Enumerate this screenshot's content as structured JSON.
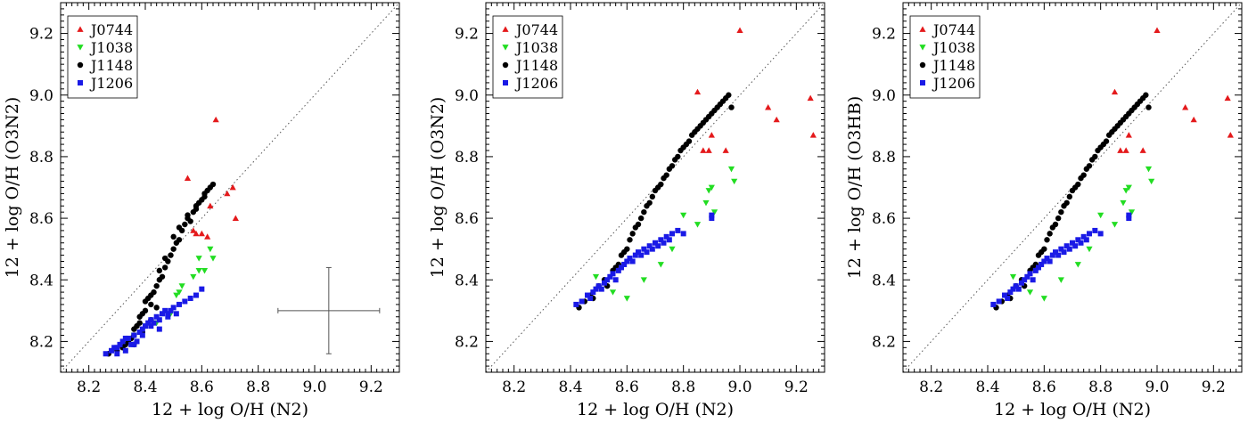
{
  "chart_data": [
    {
      "type": "scatter",
      "xlabel": "12 + log O/H (N2)",
      "ylabel": "12 + log O/H (O3N2)",
      "xlim": [
        8.1,
        9.3
      ],
      "ylim": [
        8.1,
        9.3
      ],
      "xticks": [
        "8.2",
        "8.4",
        "8.6",
        "8.8",
        "9.0",
        "9.2"
      ],
      "yticks": [
        "8.2",
        "8.4",
        "8.6",
        "8.8",
        "9.0",
        "9.2"
      ],
      "identity_line": true,
      "legend_position": "top-left",
      "error_bar": {
        "x": 9.05,
        "y": 8.3,
        "xerr": 0.18,
        "yerr": 0.14
      },
      "series": [
        {
          "name": "J0744",
          "marker": "triangle-up",
          "color": "#e41a1c",
          "x": [
            8.55,
            8.58,
            8.6,
            8.62,
            8.65,
            8.69,
            8.71,
            8.72,
            8.57,
            8.63
          ],
          "y": [
            8.73,
            8.55,
            8.55,
            8.54,
            8.92,
            8.68,
            8.7,
            8.6,
            8.56,
            8.64
          ]
        },
        {
          "name": "J1038",
          "marker": "triangle-down",
          "color": "#22dd22",
          "x": [
            8.36,
            8.4,
            8.44,
            8.49,
            8.51,
            8.52,
            8.53,
            8.57,
            8.59,
            8.59,
            8.61,
            8.63,
            8.64
          ],
          "y": [
            8.22,
            8.25,
            8.26,
            8.29,
            8.35,
            8.36,
            8.38,
            8.41,
            8.43,
            8.47,
            8.43,
            8.5,
            8.47
          ]
        },
        {
          "name": "J1148",
          "marker": "circle",
          "color": "#000000",
          "x": [
            8.27,
            8.3,
            8.32,
            8.33,
            8.34,
            8.35,
            8.36,
            8.36,
            8.37,
            8.38,
            8.38,
            8.39,
            8.4,
            8.4,
            8.41,
            8.42,
            8.42,
            8.43,
            8.44,
            8.45,
            8.46,
            8.47,
            8.48,
            8.49,
            8.5,
            8.51,
            8.52,
            8.53,
            8.54,
            8.55,
            8.56,
            8.57,
            8.58,
            8.59,
            8.6,
            8.61,
            8.62,
            8.63,
            8.64,
            8.45,
            8.47,
            8.5,
            8.52,
            8.55,
            8.58,
            8.61,
            8.36,
            8.39,
            8.42,
            8.44
          ],
          "y": [
            8.16,
            8.17,
            8.18,
            8.19,
            8.2,
            8.21,
            8.22,
            8.24,
            8.25,
            8.26,
            8.28,
            8.29,
            8.3,
            8.33,
            8.34,
            8.35,
            8.32,
            8.36,
            8.38,
            8.4,
            8.41,
            8.44,
            8.46,
            8.48,
            8.5,
            8.52,
            8.53,
            8.56,
            8.58,
            8.6,
            8.59,
            8.62,
            8.63,
            8.65,
            8.66,
            8.68,
            8.69,
            8.7,
            8.71,
            8.43,
            8.47,
            8.54,
            8.57,
            8.61,
            8.64,
            8.67,
            8.19,
            8.23,
            8.27,
            8.31
          ]
        },
        {
          "name": "J1206",
          "marker": "square",
          "color": "#1a1ae6",
          "x": [
            8.26,
            8.28,
            8.29,
            8.3,
            8.31,
            8.32,
            8.33,
            8.34,
            8.35,
            8.36,
            8.37,
            8.38,
            8.39,
            8.4,
            8.41,
            8.42,
            8.43,
            8.44,
            8.45,
            8.46,
            8.47,
            8.48,
            8.49,
            8.5,
            8.52,
            8.54,
            8.56,
            8.58,
            8.6,
            8.3,
            8.33,
            8.36,
            8.39,
            8.42,
            8.45,
            8.48,
            8.51
          ],
          "y": [
            8.16,
            8.17,
            8.18,
            8.16,
            8.19,
            8.2,
            8.17,
            8.21,
            8.19,
            8.22,
            8.2,
            8.23,
            8.24,
            8.25,
            8.26,
            8.27,
            8.26,
            8.28,
            8.27,
            8.29,
            8.3,
            8.28,
            8.3,
            8.31,
            8.32,
            8.33,
            8.34,
            8.35,
            8.37,
            8.18,
            8.21,
            8.19,
            8.22,
            8.25,
            8.24,
            8.29,
            8.29
          ]
        }
      ]
    },
    {
      "type": "scatter",
      "xlabel": "12 + log O/H (N2)",
      "ylabel": "12 + log O/H (O3N2)",
      "xlim": [
        8.1,
        9.3
      ],
      "ylim": [
        8.1,
        9.3
      ],
      "xticks": [
        "8.2",
        "8.4",
        "8.6",
        "8.8",
        "9.0",
        "9.2"
      ],
      "yticks": [
        "8.2",
        "8.4",
        "8.6",
        "8.8",
        "9.0",
        "9.2"
      ],
      "identity_line": true,
      "legend_position": "top-left",
      "series": [
        {
          "name": "J0744",
          "marker": "triangle-up",
          "color": "#e41a1c",
          "x": [
            8.85,
            8.87,
            8.89,
            8.9,
            8.95,
            9.0,
            9.1,
            9.13,
            9.25,
            9.26
          ],
          "y": [
            9.01,
            8.82,
            8.82,
            8.87,
            8.82,
            9.21,
            8.96,
            8.92,
            8.99,
            8.87
          ]
        },
        {
          "name": "J1038",
          "marker": "triangle-down",
          "color": "#22dd22",
          "x": [
            8.49,
            8.55,
            8.6,
            8.66,
            8.72,
            8.76,
            8.8,
            8.85,
            8.88,
            8.89,
            8.9,
            8.91,
            8.97,
            8.98
          ],
          "y": [
            8.41,
            8.36,
            8.34,
            8.4,
            8.45,
            8.5,
            8.61,
            8.58,
            8.65,
            8.69,
            8.7,
            8.62,
            8.76,
            8.72
          ]
        },
        {
          "name": "J1148",
          "marker": "circle",
          "color": "#000000",
          "x": [
            8.43,
            8.45,
            8.47,
            8.5,
            8.52,
            8.55,
            8.57,
            8.58,
            8.6,
            8.61,
            8.62,
            8.63,
            8.64,
            8.65,
            8.66,
            8.67,
            8.68,
            8.69,
            8.7,
            8.71,
            8.72,
            8.73,
            8.74,
            8.75,
            8.76,
            8.77,
            8.78,
            8.79,
            8.8,
            8.81,
            8.82,
            8.83,
            8.84,
            8.85,
            8.86,
            8.87,
            8.88,
            8.89,
            8.9,
            8.91,
            8.92,
            8.93,
            8.94,
            8.95,
            8.96,
            8.97,
            8.48,
            8.53,
            8.56,
            8.59
          ],
          "y": [
            8.31,
            8.33,
            8.35,
            8.38,
            8.4,
            8.43,
            8.45,
            8.48,
            8.5,
            8.53,
            8.55,
            8.57,
            8.58,
            8.6,
            8.62,
            8.64,
            8.65,
            8.67,
            8.69,
            8.7,
            8.71,
            8.73,
            8.74,
            8.76,
            8.77,
            8.79,
            8.8,
            8.82,
            8.83,
            8.84,
            8.85,
            8.87,
            8.88,
            8.89,
            8.9,
            8.91,
            8.92,
            8.93,
            8.94,
            8.95,
            8.96,
            8.97,
            8.98,
            8.99,
            9.0,
            8.96,
            8.34,
            8.38,
            8.44,
            8.49
          ]
        },
        {
          "name": "J1206",
          "marker": "square",
          "color": "#1a1ae6",
          "x": [
            8.42,
            8.44,
            8.46,
            8.47,
            8.48,
            8.49,
            8.5,
            8.51,
            8.52,
            8.53,
            8.54,
            8.55,
            8.56,
            8.57,
            8.58,
            8.59,
            8.6,
            8.61,
            8.62,
            8.63,
            8.64,
            8.65,
            8.66,
            8.67,
            8.68,
            8.69,
            8.7,
            8.71,
            8.72,
            8.73,
            8.74,
            8.75,
            8.76,
            8.78,
            8.8,
            8.9,
            8.9
          ],
          "y": [
            8.32,
            8.33,
            8.35,
            8.34,
            8.36,
            8.37,
            8.38,
            8.37,
            8.39,
            8.4,
            8.41,
            8.42,
            8.4,
            8.43,
            8.44,
            8.45,
            8.46,
            8.47,
            8.46,
            8.48,
            8.49,
            8.48,
            8.5,
            8.49,
            8.51,
            8.5,
            8.52,
            8.51,
            8.53,
            8.52,
            8.54,
            8.53,
            8.55,
            8.56,
            8.55,
            8.6,
            8.61
          ]
        }
      ]
    },
    {
      "type": "scatter",
      "xlabel": "12 + log O/H (N2)",
      "ylabel": "12 + log O/H (O3HB)",
      "xlim": [
        8.1,
        9.3
      ],
      "ylim": [
        8.1,
        9.3
      ],
      "xticks": [
        "8.2",
        "8.4",
        "8.6",
        "8.8",
        "9.0",
        "9.2"
      ],
      "yticks": [
        "8.2",
        "8.4",
        "8.6",
        "8.8",
        "9.0",
        "9.2"
      ],
      "identity_line": true,
      "legend_position": "top-left",
      "series": [
        {
          "name": "J0744",
          "marker": "triangle-up",
          "color": "#e41a1c",
          "x": [
            8.85,
            8.87,
            8.89,
            8.9,
            8.95,
            9.0,
            9.1,
            9.13,
            9.25,
            9.26
          ],
          "y": [
            9.01,
            8.82,
            8.82,
            8.87,
            8.82,
            9.21,
            8.96,
            8.92,
            8.99,
            8.87
          ]
        },
        {
          "name": "J1038",
          "marker": "triangle-down",
          "color": "#22dd22",
          "x": [
            8.49,
            8.55,
            8.6,
            8.66,
            8.72,
            8.76,
            8.8,
            8.85,
            8.88,
            8.89,
            8.9,
            8.91,
            8.97,
            8.98
          ],
          "y": [
            8.41,
            8.36,
            8.34,
            8.4,
            8.45,
            8.5,
            8.61,
            8.58,
            8.65,
            8.69,
            8.7,
            8.62,
            8.76,
            8.72
          ]
        },
        {
          "name": "J1148",
          "marker": "circle",
          "color": "#000000",
          "x": [
            8.43,
            8.45,
            8.47,
            8.5,
            8.52,
            8.55,
            8.57,
            8.58,
            8.6,
            8.61,
            8.62,
            8.63,
            8.64,
            8.65,
            8.66,
            8.67,
            8.68,
            8.69,
            8.7,
            8.71,
            8.72,
            8.73,
            8.74,
            8.75,
            8.76,
            8.77,
            8.78,
            8.79,
            8.8,
            8.81,
            8.82,
            8.83,
            8.84,
            8.85,
            8.86,
            8.87,
            8.88,
            8.89,
            8.9,
            8.91,
            8.92,
            8.93,
            8.94,
            8.95,
            8.96,
            8.97,
            8.48,
            8.53,
            8.56,
            8.59
          ],
          "y": [
            8.31,
            8.33,
            8.35,
            8.38,
            8.4,
            8.43,
            8.45,
            8.48,
            8.5,
            8.53,
            8.55,
            8.57,
            8.58,
            8.6,
            8.62,
            8.64,
            8.65,
            8.67,
            8.69,
            8.7,
            8.71,
            8.73,
            8.74,
            8.76,
            8.77,
            8.79,
            8.8,
            8.82,
            8.83,
            8.84,
            8.85,
            8.87,
            8.88,
            8.89,
            8.9,
            8.91,
            8.92,
            8.93,
            8.94,
            8.95,
            8.96,
            8.97,
            8.98,
            8.99,
            9.0,
            8.96,
            8.34,
            8.38,
            8.44,
            8.49
          ]
        },
        {
          "name": "J1206",
          "marker": "square",
          "color": "#1a1ae6",
          "x": [
            8.42,
            8.44,
            8.46,
            8.47,
            8.48,
            8.49,
            8.5,
            8.51,
            8.52,
            8.53,
            8.54,
            8.55,
            8.56,
            8.57,
            8.58,
            8.59,
            8.6,
            8.61,
            8.62,
            8.63,
            8.64,
            8.65,
            8.66,
            8.67,
            8.68,
            8.69,
            8.7,
            8.71,
            8.72,
            8.73,
            8.74,
            8.75,
            8.76,
            8.78,
            8.8,
            8.9,
            8.9
          ],
          "y": [
            8.32,
            8.33,
            8.35,
            8.34,
            8.36,
            8.37,
            8.38,
            8.37,
            8.39,
            8.4,
            8.41,
            8.42,
            8.4,
            8.43,
            8.44,
            8.45,
            8.46,
            8.47,
            8.46,
            8.48,
            8.49,
            8.48,
            8.5,
            8.49,
            8.51,
            8.5,
            8.52,
            8.51,
            8.53,
            8.52,
            8.54,
            8.53,
            8.55,
            8.56,
            8.55,
            8.6,
            8.61
          ]
        }
      ]
    }
  ]
}
